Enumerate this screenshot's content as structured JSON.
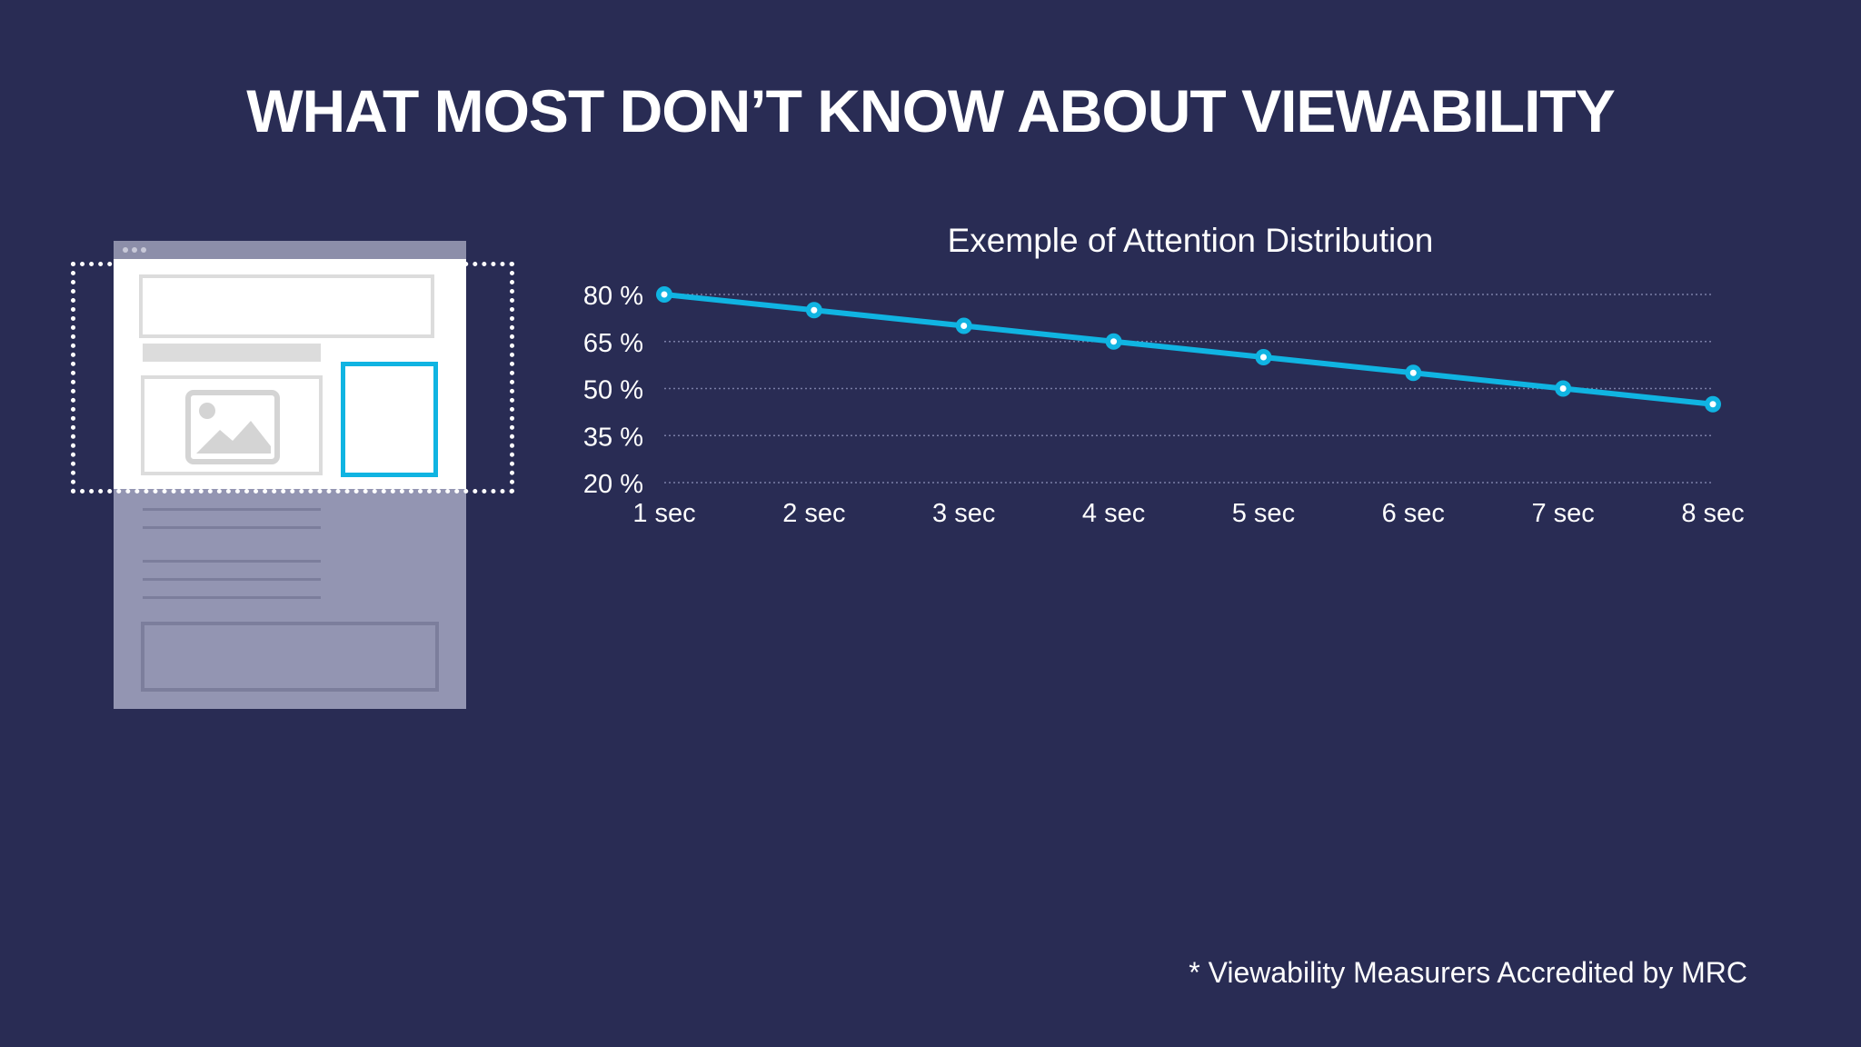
{
  "slide": {
    "title": "WHAT MOST DON’T KNOW ABOUT VIEWABILITY",
    "footnote": "* Viewability Measurers Accredited by MRC"
  },
  "colors": {
    "background": "#292c54",
    "accent": "#10b4e2",
    "text": "#ffffff",
    "grid": "#7a7ea6"
  },
  "illustration": {
    "image_icon": "image-icon"
  },
  "chart_data": {
    "type": "line",
    "title": "Exemple of Attention Distribution",
    "x": [
      "1 sec",
      "2 sec",
      "3 sec",
      "4 sec",
      "5 sec",
      "6 sec",
      "7 sec",
      "8 sec"
    ],
    "y_ticks": [
      "20 %",
      "35 %",
      "50 %",
      "65 %",
      "80 %"
    ],
    "ylim": [
      20,
      80
    ],
    "series": [
      {
        "values": [
          80,
          75,
          70,
          65,
          60,
          55,
          50,
          45
        ]
      }
    ],
    "grid": true,
    "legend": "none"
  }
}
